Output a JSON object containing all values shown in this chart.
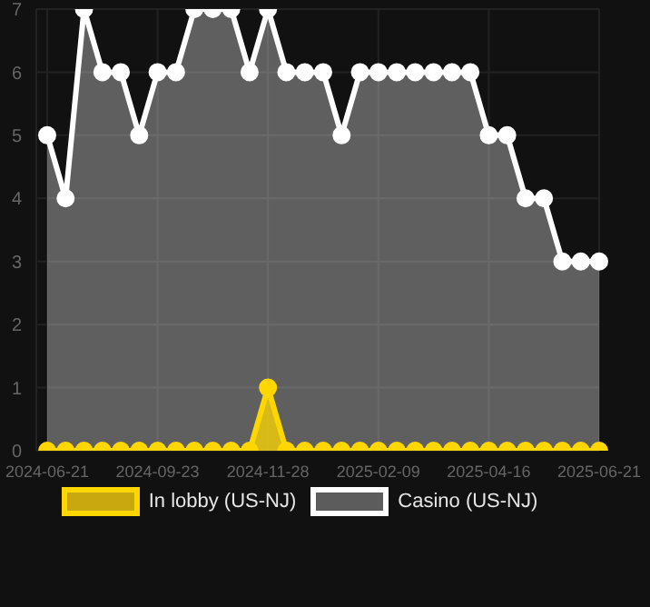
{
  "chart_data": {
    "type": "area",
    "categories": [
      "2024-06-21",
      null,
      null,
      null,
      null,
      null,
      "2024-09-23",
      null,
      null,
      null,
      null,
      null,
      "2024-11-28",
      null,
      null,
      null,
      null,
      null,
      "2025-02-09",
      null,
      null,
      null,
      null,
      null,
      "2025-04-16",
      null,
      null,
      null,
      null,
      null,
      "2025-06-21"
    ],
    "series": [
      {
        "name": "In lobby (US-NJ)",
        "color": "#ffd700",
        "values": [
          0,
          0,
          0,
          0,
          0,
          0,
          0,
          0,
          0,
          0,
          0,
          0,
          1,
          0,
          0,
          0,
          0,
          0,
          0,
          0,
          0,
          0,
          0,
          0,
          0,
          0,
          0,
          0,
          0,
          0,
          0
        ]
      },
      {
        "name": "Casino (US-NJ)",
        "color": "#ffffff",
        "values": [
          5,
          4,
          7,
          6,
          6,
          5,
          6,
          6,
          7,
          7,
          7,
          6,
          7,
          6,
          6,
          6,
          5,
          6,
          6,
          6,
          6,
          6,
          6,
          6,
          5,
          5,
          4,
          4,
          3,
          3,
          3
        ]
      }
    ],
    "ylim": [
      0,
      7
    ],
    "yticks": [
      0,
      1,
      2,
      3,
      4,
      5,
      6,
      7
    ],
    "grid": true,
    "legend": "bottom",
    "marker": "circle"
  }
}
